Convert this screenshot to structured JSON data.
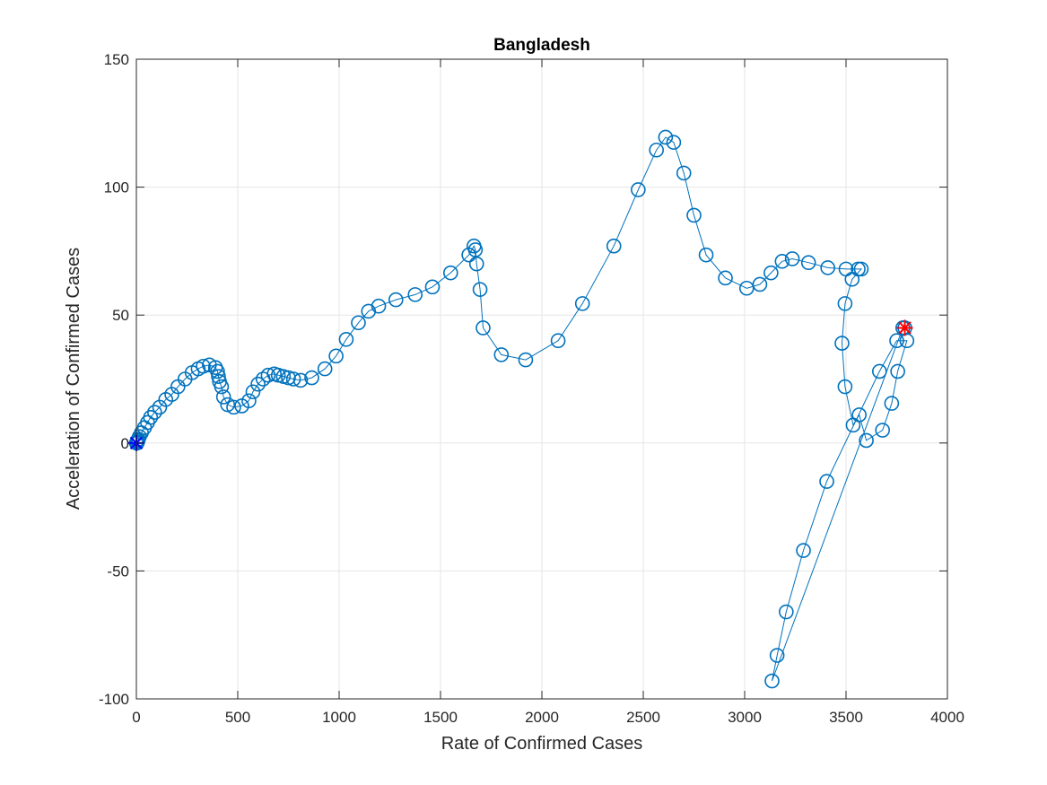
{
  "chart_data": {
    "type": "line",
    "title": "Bangladesh",
    "xlabel": "Rate of Confirmed Cases",
    "ylabel": "Acceleration of Confirmed Cases",
    "xlim": [
      0,
      4000
    ],
    "ylim": [
      -100,
      150
    ],
    "xticks": [
      "0",
      "500",
      "1000",
      "1500",
      "2000",
      "2500",
      "3000",
      "3500",
      "4000"
    ],
    "yticks": [
      "150",
      "100",
      "50",
      "0",
      "-50",
      "-100"
    ],
    "grid": true,
    "line_color": "#0072BD",
    "start_marker_color": "#0000FF",
    "end_marker_color": "#FF0000",
    "series": [
      {
        "marker": "circle",
        "x": [
          0,
          2,
          4,
          6,
          8,
          10,
          15,
          25,
          40,
          55,
          70,
          90,
          115,
          145,
          175,
          205,
          240,
          275,
          305,
          330,
          360,
          390,
          400,
          405,
          410,
          420,
          430,
          450,
          480,
          520,
          555,
          575,
          600,
          625,
          650,
          680,
          700,
          725,
          750,
          775,
          810,
          865,
          930,
          985,
          1035,
          1095,
          1145,
          1195,
          1280,
          1375,
          1460,
          1550,
          1640,
          1665,
          1672,
          1678,
          1695,
          1710,
          1800,
          1920,
          2080,
          2200,
          2355,
          2475,
          2565,
          2610,
          2650,
          2700,
          2750,
          2810,
          2905,
          3010,
          3075,
          3130,
          3185,
          3235,
          3315,
          3410,
          3500,
          3560,
          3575,
          3530,
          3495,
          3480,
          3495,
          3535,
          3565,
          3600,
          3680,
          3725,
          3755,
          3800,
          3750,
          3665,
          3405,
          3290,
          3205,
          3160,
          3135,
          3780,
          3790
        ],
        "y": [
          0,
          0,
          0,
          0.5,
          1,
          1.5,
          2.5,
          4,
          6,
          8,
          10,
          12,
          14,
          17,
          19,
          22,
          25,
          27.5,
          29,
          30,
          30.5,
          29.5,
          28,
          26,
          24,
          22,
          18,
          15,
          14,
          14.5,
          16.5,
          20,
          23,
          25,
          26.5,
          27,
          26.5,
          26,
          25.5,
          25,
          24.5,
          25.5,
          29,
          34,
          40.5,
          47,
          51.5,
          53.5,
          56,
          58,
          61,
          66.5,
          73.5,
          77,
          75.5,
          70,
          60,
          45,
          34.5,
          32.5,
          40,
          54.5,
          77,
          99,
          114.5,
          119.5,
          117.5,
          105.5,
          89,
          73.5,
          64.5,
          60.5,
          62,
          66.5,
          71,
          72,
          70.5,
          68.5,
          68,
          68,
          68,
          64,
          54.5,
          39,
          22,
          7,
          11,
          1,
          5,
          15.5,
          28,
          40,
          40,
          28,
          -15,
          -42,
          -66,
          -83,
          -93,
          45,
          45
        ]
      }
    ],
    "start_point": {
      "x": 0,
      "y": 0
    },
    "end_point": {
      "x": 3790,
      "y": 45
    }
  }
}
